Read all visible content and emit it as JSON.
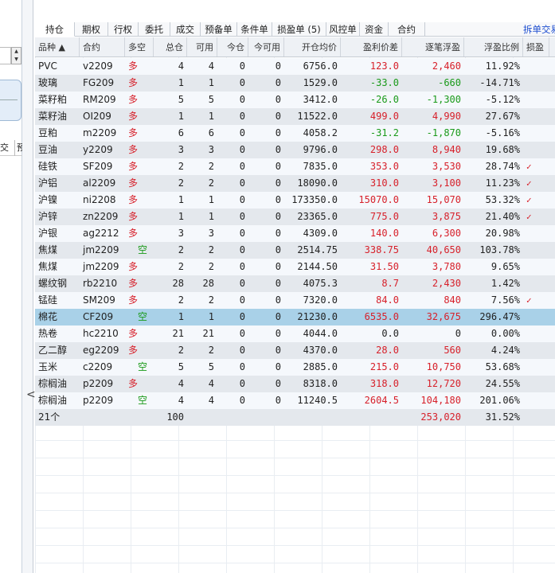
{
  "left_panel": {
    "tabs": [
      "交",
      "预"
    ],
    "collapse": "<"
  },
  "tabs": [
    "持仓",
    "期权",
    "行权",
    "委托",
    "成交",
    "预备单",
    "条件单",
    "损盈单 (5)",
    "风控单",
    "资金",
    "合约"
  ],
  "split_trade": "拆单交易",
  "columns": [
    "品种 ▲",
    "合约",
    "多空",
    "总仓",
    "可用",
    "今仓",
    "今可用",
    "开仓均价",
    "盈利价差",
    "逐笔浮盈",
    "浮盈比例",
    "损盈"
  ],
  "rows": [
    [
      "PVC",
      "v2209",
      "多",
      "4",
      "4",
      "0",
      "0",
      "6756.0",
      "123.0",
      "2,460",
      "11.92%",
      ""
    ],
    [
      "玻璃",
      "FG209",
      "多",
      "1",
      "1",
      "0",
      "0",
      "1529.0",
      "-33.0",
      "-660",
      "-14.71%",
      ""
    ],
    [
      "菜籽粕",
      "RM209",
      "多",
      "5",
      "5",
      "0",
      "0",
      "3412.0",
      "-26.0",
      "-1,300",
      "-5.12%",
      ""
    ],
    [
      "菜籽油",
      "OI209",
      "多",
      "1",
      "1",
      "0",
      "0",
      "11522.0",
      "499.0",
      "4,990",
      "27.67%",
      ""
    ],
    [
      "豆粕",
      "m2209",
      "多",
      "6",
      "6",
      "0",
      "0",
      "4058.2",
      "-31.2",
      "-1,870",
      "-5.16%",
      ""
    ],
    [
      "豆油",
      "y2209",
      "多",
      "3",
      "3",
      "0",
      "0",
      "9796.0",
      "298.0",
      "8,940",
      "19.68%",
      ""
    ],
    [
      "硅铁",
      "SF209",
      "多",
      "2",
      "2",
      "0",
      "0",
      "7835.0",
      "353.0",
      "3,530",
      "28.74%",
      "✓"
    ],
    [
      "沪铝",
      "al2209",
      "多",
      "2",
      "2",
      "0",
      "0",
      "18090.0",
      "310.0",
      "3,100",
      "11.23%",
      "✓"
    ],
    [
      "沪镍",
      "ni2208",
      "多",
      "1",
      "1",
      "0",
      "0",
      "173350.0",
      "15070.0",
      "15,070",
      "53.32%",
      "✓"
    ],
    [
      "沪锌",
      "zn2209",
      "多",
      "1",
      "1",
      "0",
      "0",
      "23365.0",
      "775.0",
      "3,875",
      "21.40%",
      "✓"
    ],
    [
      "沪银",
      "ag2212",
      "多",
      "3",
      "3",
      "0",
      "0",
      "4309.0",
      "140.0",
      "6,300",
      "20.98%",
      ""
    ],
    [
      "焦煤",
      "jm2209",
      "空",
      "2",
      "2",
      "0",
      "0",
      "2514.75",
      "338.75",
      "40,650",
      "103.78%",
      ""
    ],
    [
      "焦煤",
      "jm2209",
      "多",
      "2",
      "2",
      "0",
      "0",
      "2144.50",
      "31.50",
      "3,780",
      "9.65%",
      ""
    ],
    [
      "螺纹钢",
      "rb2210",
      "多",
      "28",
      "28",
      "0",
      "0",
      "4075.3",
      "8.7",
      "2,430",
      "1.42%",
      ""
    ],
    [
      "锰硅",
      "SM209",
      "多",
      "2",
      "2",
      "0",
      "0",
      "7320.0",
      "84.0",
      "840",
      "7.56%",
      "✓"
    ],
    [
      "棉花",
      "CF209",
      "空",
      "1",
      "1",
      "0",
      "0",
      "21230.0",
      "6535.0",
      "32,675",
      "296.47%",
      ""
    ],
    [
      "热卷",
      "hc2210",
      "多",
      "21",
      "21",
      "0",
      "0",
      "4044.0",
      "0.0",
      "0",
      "0.00%",
      ""
    ],
    [
      "乙二醇",
      "eg2209",
      "多",
      "2",
      "2",
      "0",
      "0",
      "4370.0",
      "28.0",
      "560",
      "4.24%",
      ""
    ],
    [
      "玉米",
      "c2209",
      "空",
      "5",
      "5",
      "0",
      "0",
      "2885.0",
      "215.0",
      "10,750",
      "53.68%",
      ""
    ],
    [
      "棕榈油",
      "p2209",
      "多",
      "4",
      "4",
      "0",
      "0",
      "8318.0",
      "318.0",
      "12,720",
      "24.55%",
      ""
    ],
    [
      "棕榈油",
      "p2209",
      "空",
      "4",
      "4",
      "0",
      "0",
      "11240.5",
      "2604.5",
      "104,180",
      "201.06%",
      ""
    ]
  ],
  "selected_row": 15,
  "summary": {
    "count": "21个",
    "total": "100",
    "float_pnl": "253,020",
    "ratio": "31.52%"
  },
  "colors": {
    "profit": "#d7202a",
    "loss": "#1a9a1a",
    "selected": "#a9d1e8",
    "link": "#1f4fd0"
  }
}
